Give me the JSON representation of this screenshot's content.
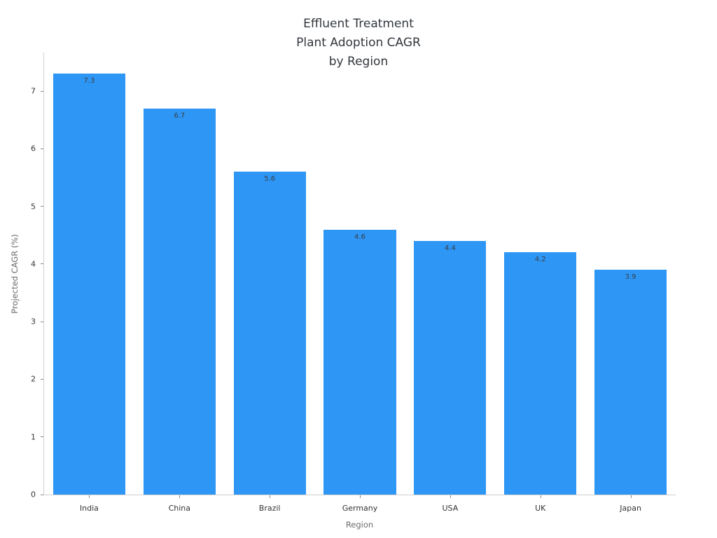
{
  "chart_data": {
    "type": "bar",
    "title": "Effluent Treatment\nPlant Adoption CAGR\nby Region",
    "xlabel": "Region",
    "ylabel": "Projected CAGR (%)",
    "categories": [
      "India",
      "China",
      "Brazil",
      "Germany",
      "USA",
      "UK",
      "Japan"
    ],
    "values": [
      7.3,
      6.7,
      5.6,
      4.6,
      4.4,
      4.2,
      3.9
    ],
    "value_labels": [
      "7.3",
      "6.7",
      "5.6",
      "4.6",
      "4.4",
      "4.2",
      "3.9"
    ],
    "ylim": [
      0,
      7.67
    ],
    "yticks": [
      0,
      1,
      2,
      3,
      4,
      5,
      6,
      7
    ],
    "grid": false,
    "legend_position": "none",
    "bar_color": "#2e96f5",
    "axis_color": "#cfcfcf",
    "text_color": "#333333"
  }
}
